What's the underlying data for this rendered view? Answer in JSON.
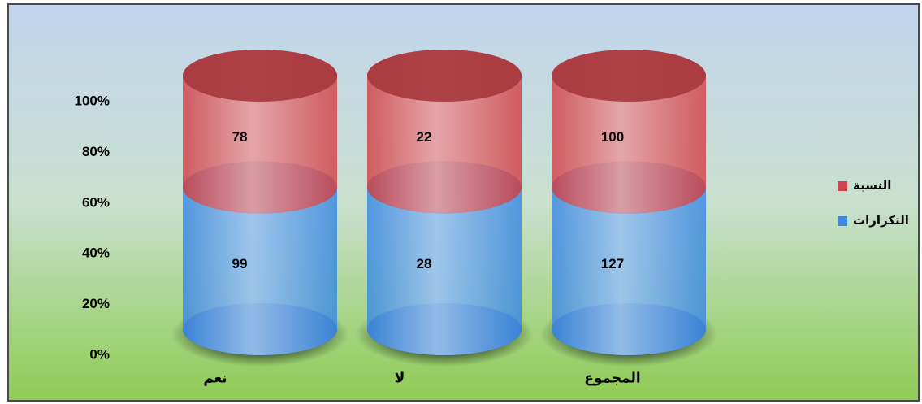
{
  "chart_data": {
    "type": "bar",
    "stacking": "percent",
    "categories": [
      "نعم",
      "لا",
      "المجموع"
    ],
    "series": [
      {
        "name": "التكرارات",
        "color": "#3d8be0",
        "values": [
          99,
          28,
          127
        ]
      },
      {
        "name": "النسبة",
        "color": "#d0454b",
        "values": [
          78,
          22,
          100
        ]
      }
    ],
    "ylim": [
      0,
      100
    ],
    "yticks": [
      {
        "value": 0,
        "label": "0%"
      },
      {
        "value": 20,
        "label": "20%"
      },
      {
        "value": 40,
        "label": "40%"
      },
      {
        "value": 60,
        "label": "60%"
      },
      {
        "value": 80,
        "label": "80%"
      },
      {
        "value": 100,
        "label": "100%"
      }
    ],
    "legend": "right"
  }
}
